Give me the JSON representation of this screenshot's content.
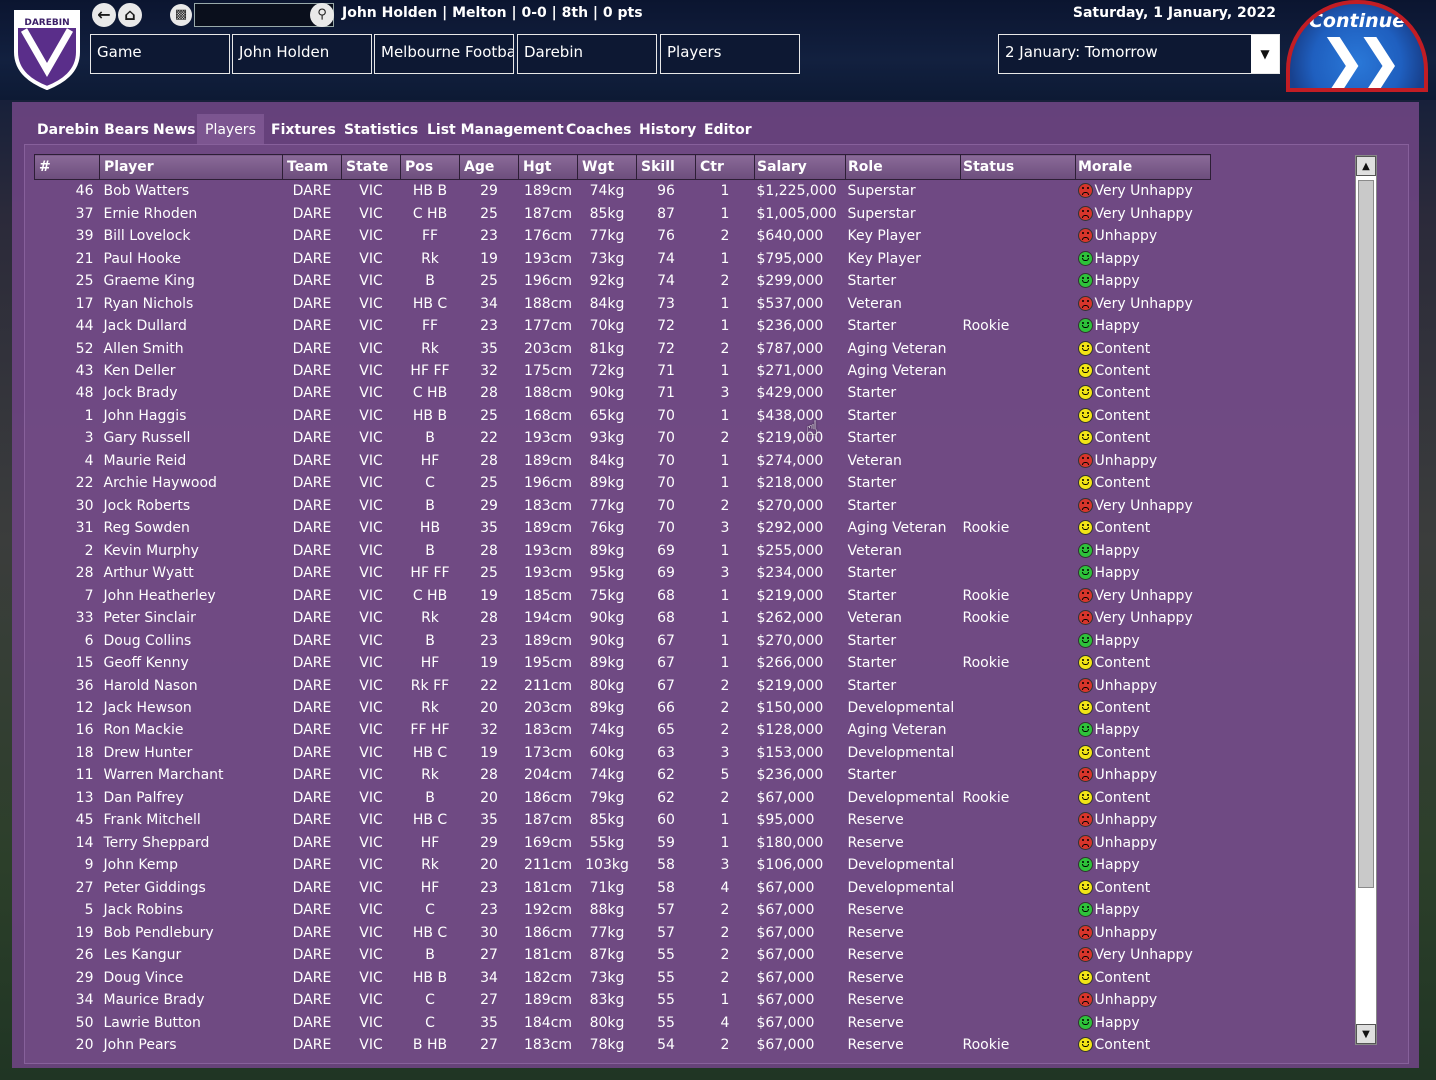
{
  "header": {
    "club_logo_text": "DAREBIN",
    "summary": "John Holden | Melton | 0-0 | 8th | 0 pts",
    "date": "Saturday, 1 January, 2022",
    "search_placeholder": "",
    "breadcrumbs": [
      "Game",
      "John Holden",
      "Melbourne Football",
      "Darebin",
      "Players"
    ],
    "next_day": "2 January: Tomorrow",
    "continue_label": "Continue"
  },
  "tabs": [
    "Darebin Bears",
    "News",
    "Players",
    "Fixtures",
    "Statistics",
    "List Management",
    "Coaches",
    "History",
    "Editor"
  ],
  "active_tab": "Players",
  "columns": [
    "#",
    "Player",
    "Team",
    "State",
    "Pos",
    "Age",
    "Hgt",
    "Wgt",
    "Skill",
    "Ctr",
    "Salary",
    "Role",
    "Status",
    "Morale"
  ],
  "players": [
    {
      "num": "46",
      "name": "Bob Watters",
      "team": "DARE",
      "state": "VIC",
      "pos": "HB B",
      "age": "29",
      "hgt": "189cm",
      "wgt": "74kg",
      "skill": "96",
      "ctr": "1",
      "salary": "$1,225,000",
      "role": "Superstar",
      "status": "",
      "morale": "Very Unhappy",
      "mood": "vunhappy"
    },
    {
      "num": "37",
      "name": "Ernie Rhoden",
      "team": "DARE",
      "state": "VIC",
      "pos": "C HB",
      "age": "25",
      "hgt": "187cm",
      "wgt": "85kg",
      "skill": "87",
      "ctr": "1",
      "salary": "$1,005,000",
      "role": "Superstar",
      "status": "",
      "morale": "Very Unhappy",
      "mood": "vunhappy"
    },
    {
      "num": "39",
      "name": "Bill Lovelock",
      "team": "DARE",
      "state": "VIC",
      "pos": "FF",
      "age": "23",
      "hgt": "176cm",
      "wgt": "77kg",
      "skill": "76",
      "ctr": "2",
      "salary": "$640,000",
      "role": "Key Player",
      "status": "",
      "morale": "Unhappy",
      "mood": "unhappy"
    },
    {
      "num": "21",
      "name": "Paul Hooke",
      "team": "DARE",
      "state": "VIC",
      "pos": "Rk",
      "age": "19",
      "hgt": "193cm",
      "wgt": "73kg",
      "skill": "74",
      "ctr": "1",
      "salary": "$795,000",
      "role": "Key Player",
      "status": "",
      "morale": "Happy",
      "mood": "happy"
    },
    {
      "num": "25",
      "name": "Graeme King",
      "team": "DARE",
      "state": "VIC",
      "pos": "B",
      "age": "25",
      "hgt": "196cm",
      "wgt": "92kg",
      "skill": "74",
      "ctr": "2",
      "salary": "$299,000",
      "role": "Starter",
      "status": "",
      "morale": "Happy",
      "mood": "happy"
    },
    {
      "num": "17",
      "name": "Ryan Nichols",
      "team": "DARE",
      "state": "VIC",
      "pos": "HB C",
      "age": "34",
      "hgt": "188cm",
      "wgt": "84kg",
      "skill": "73",
      "ctr": "1",
      "salary": "$537,000",
      "role": "Veteran",
      "status": "",
      "morale": "Very Unhappy",
      "mood": "vunhappy"
    },
    {
      "num": "44",
      "name": "Jack Dullard",
      "team": "DARE",
      "state": "VIC",
      "pos": "FF",
      "age": "23",
      "hgt": "177cm",
      "wgt": "70kg",
      "skill": "72",
      "ctr": "1",
      "salary": "$236,000",
      "role": "Starter",
      "status": "Rookie",
      "morale": "Happy",
      "mood": "happy"
    },
    {
      "num": "52",
      "name": "Allen Smith",
      "team": "DARE",
      "state": "VIC",
      "pos": "Rk",
      "age": "35",
      "hgt": "203cm",
      "wgt": "81kg",
      "skill": "72",
      "ctr": "2",
      "salary": "$787,000",
      "role": "Aging Veteran",
      "status": "",
      "morale": "Content",
      "mood": "content"
    },
    {
      "num": "43",
      "name": "Ken Deller",
      "team": "DARE",
      "state": "VIC",
      "pos": "HF FF",
      "age": "32",
      "hgt": "175cm",
      "wgt": "72kg",
      "skill": "71",
      "ctr": "1",
      "salary": "$271,000",
      "role": "Aging Veteran",
      "status": "",
      "morale": "Content",
      "mood": "content"
    },
    {
      "num": "48",
      "name": "Jock Brady",
      "team": "DARE",
      "state": "VIC",
      "pos": "C HB",
      "age": "28",
      "hgt": "188cm",
      "wgt": "90kg",
      "skill": "71",
      "ctr": "3",
      "salary": "$429,000",
      "role": "Starter",
      "status": "",
      "morale": "Content",
      "mood": "content"
    },
    {
      "num": "1",
      "name": "John Haggis",
      "team": "DARE",
      "state": "VIC",
      "pos": "HB B",
      "age": "25",
      "hgt": "168cm",
      "wgt": "65kg",
      "skill": "70",
      "ctr": "1",
      "salary": "$438,000",
      "role": "Starter",
      "status": "",
      "morale": "Content",
      "mood": "content"
    },
    {
      "num": "3",
      "name": "Gary Russell",
      "team": "DARE",
      "state": "VIC",
      "pos": "B",
      "age": "22",
      "hgt": "193cm",
      "wgt": "93kg",
      "skill": "70",
      "ctr": "2",
      "salary": "$219,000",
      "role": "Starter",
      "status": "",
      "morale": "Content",
      "mood": "content"
    },
    {
      "num": "4",
      "name": "Maurie Reid",
      "team": "DARE",
      "state": "VIC",
      "pos": "HF",
      "age": "28",
      "hgt": "189cm",
      "wgt": "84kg",
      "skill": "70",
      "ctr": "1",
      "salary": "$274,000",
      "role": "Veteran",
      "status": "",
      "morale": "Unhappy",
      "mood": "unhappy"
    },
    {
      "num": "22",
      "name": "Archie Haywood",
      "team": "DARE",
      "state": "VIC",
      "pos": "C",
      "age": "25",
      "hgt": "196cm",
      "wgt": "89kg",
      "skill": "70",
      "ctr": "1",
      "salary": "$218,000",
      "role": "Starter",
      "status": "",
      "morale": "Content",
      "mood": "content"
    },
    {
      "num": "30",
      "name": "Jock Roberts",
      "team": "DARE",
      "state": "VIC",
      "pos": "B",
      "age": "29",
      "hgt": "183cm",
      "wgt": "77kg",
      "skill": "70",
      "ctr": "2",
      "salary": "$270,000",
      "role": "Starter",
      "status": "",
      "morale": "Very Unhappy",
      "mood": "vunhappy"
    },
    {
      "num": "31",
      "name": "Reg Sowden",
      "team": "DARE",
      "state": "VIC",
      "pos": "HB",
      "age": "35",
      "hgt": "189cm",
      "wgt": "76kg",
      "skill": "70",
      "ctr": "3",
      "salary": "$292,000",
      "role": "Aging Veteran",
      "status": "Rookie",
      "morale": "Content",
      "mood": "content"
    },
    {
      "num": "2",
      "name": "Kevin Murphy",
      "team": "DARE",
      "state": "VIC",
      "pos": "B",
      "age": "28",
      "hgt": "193cm",
      "wgt": "89kg",
      "skill": "69",
      "ctr": "1",
      "salary": "$255,000",
      "role": "Veteran",
      "status": "",
      "morale": "Happy",
      "mood": "happy"
    },
    {
      "num": "28",
      "name": "Arthur Wyatt",
      "team": "DARE",
      "state": "VIC",
      "pos": "HF FF",
      "age": "25",
      "hgt": "193cm",
      "wgt": "95kg",
      "skill": "69",
      "ctr": "3",
      "salary": "$234,000",
      "role": "Starter",
      "status": "",
      "morale": "Happy",
      "mood": "happy"
    },
    {
      "num": "7",
      "name": "John Heatherley",
      "team": "DARE",
      "state": "VIC",
      "pos": "C HB",
      "age": "19",
      "hgt": "185cm",
      "wgt": "75kg",
      "skill": "68",
      "ctr": "1",
      "salary": "$219,000",
      "role": "Starter",
      "status": "Rookie",
      "morale": "Very Unhappy",
      "mood": "vunhappy"
    },
    {
      "num": "33",
      "name": "Peter Sinclair",
      "team": "DARE",
      "state": "VIC",
      "pos": "Rk",
      "age": "28",
      "hgt": "194cm",
      "wgt": "90kg",
      "skill": "68",
      "ctr": "1",
      "salary": "$262,000",
      "role": "Veteran",
      "status": "Rookie",
      "morale": "Very Unhappy",
      "mood": "vunhappy"
    },
    {
      "num": "6",
      "name": "Doug Collins",
      "team": "DARE",
      "state": "VIC",
      "pos": "B",
      "age": "23",
      "hgt": "189cm",
      "wgt": "90kg",
      "skill": "67",
      "ctr": "1",
      "salary": "$270,000",
      "role": "Starter",
      "status": "",
      "morale": "Happy",
      "mood": "happy"
    },
    {
      "num": "15",
      "name": "Geoff Kenny",
      "team": "DARE",
      "state": "VIC",
      "pos": "HF",
      "age": "19",
      "hgt": "195cm",
      "wgt": "89kg",
      "skill": "67",
      "ctr": "1",
      "salary": "$266,000",
      "role": "Starter",
      "status": "Rookie",
      "morale": "Content",
      "mood": "content"
    },
    {
      "num": "36",
      "name": "Harold Nason",
      "team": "DARE",
      "state": "VIC",
      "pos": "Rk FF",
      "age": "22",
      "hgt": "211cm",
      "wgt": "80kg",
      "skill": "67",
      "ctr": "2",
      "salary": "$219,000",
      "role": "Starter",
      "status": "",
      "morale": "Unhappy",
      "mood": "unhappy"
    },
    {
      "num": "12",
      "name": "Jack Hewson",
      "team": "DARE",
      "state": "VIC",
      "pos": "Rk",
      "age": "20",
      "hgt": "203cm",
      "wgt": "89kg",
      "skill": "66",
      "ctr": "2",
      "salary": "$150,000",
      "role": "Developmental",
      "status": "",
      "morale": "Content",
      "mood": "content"
    },
    {
      "num": "16",
      "name": "Ron Mackie",
      "team": "DARE",
      "state": "VIC",
      "pos": "FF HF",
      "age": "32",
      "hgt": "183cm",
      "wgt": "74kg",
      "skill": "65",
      "ctr": "2",
      "salary": "$128,000",
      "role": "Aging Veteran",
      "status": "",
      "morale": "Happy",
      "mood": "happy"
    },
    {
      "num": "18",
      "name": "Drew Hunter",
      "team": "DARE",
      "state": "VIC",
      "pos": "HB C",
      "age": "19",
      "hgt": "173cm",
      "wgt": "60kg",
      "skill": "63",
      "ctr": "3",
      "salary": "$153,000",
      "role": "Developmental",
      "status": "",
      "morale": "Content",
      "mood": "content"
    },
    {
      "num": "11",
      "name": "Warren Marchant",
      "team": "DARE",
      "state": "VIC",
      "pos": "Rk",
      "age": "28",
      "hgt": "204cm",
      "wgt": "74kg",
      "skill": "62",
      "ctr": "5",
      "salary": "$236,000",
      "role": "Starter",
      "status": "",
      "morale": "Unhappy",
      "mood": "unhappy"
    },
    {
      "num": "13",
      "name": "Dan Palfrey",
      "team": "DARE",
      "state": "VIC",
      "pos": "B",
      "age": "20",
      "hgt": "186cm",
      "wgt": "79kg",
      "skill": "62",
      "ctr": "2",
      "salary": "$67,000",
      "role": "Developmental",
      "status": "Rookie",
      "morale": "Content",
      "mood": "content"
    },
    {
      "num": "45",
      "name": "Frank Mitchell",
      "team": "DARE",
      "state": "VIC",
      "pos": "HB C",
      "age": "35",
      "hgt": "187cm",
      "wgt": "85kg",
      "skill": "60",
      "ctr": "1",
      "salary": "$95,000",
      "role": "Reserve",
      "status": "",
      "morale": "Unhappy",
      "mood": "unhappy"
    },
    {
      "num": "14",
      "name": "Terry Sheppard",
      "team": "DARE",
      "state": "VIC",
      "pos": "HF",
      "age": "29",
      "hgt": "169cm",
      "wgt": "55kg",
      "skill": "59",
      "ctr": "1",
      "salary": "$180,000",
      "role": "Reserve",
      "status": "",
      "morale": "Unhappy",
      "mood": "unhappy"
    },
    {
      "num": "9",
      "name": "John Kemp",
      "team": "DARE",
      "state": "VIC",
      "pos": "Rk",
      "age": "20",
      "hgt": "211cm",
      "wgt": "103kg",
      "skill": "58",
      "ctr": "3",
      "salary": "$106,000",
      "role": "Developmental",
      "status": "",
      "morale": "Happy",
      "mood": "happy"
    },
    {
      "num": "27",
      "name": "Peter Giddings",
      "team": "DARE",
      "state": "VIC",
      "pos": "HF",
      "age": "23",
      "hgt": "181cm",
      "wgt": "71kg",
      "skill": "58",
      "ctr": "4",
      "salary": "$67,000",
      "role": "Developmental",
      "status": "",
      "morale": "Content",
      "mood": "content"
    },
    {
      "num": "5",
      "name": "Jack Robins",
      "team": "DARE",
      "state": "VIC",
      "pos": "C",
      "age": "23",
      "hgt": "192cm",
      "wgt": "88kg",
      "skill": "57",
      "ctr": "2",
      "salary": "$67,000",
      "role": "Reserve",
      "status": "",
      "morale": "Happy",
      "mood": "happy"
    },
    {
      "num": "19",
      "name": "Bob Pendlebury",
      "team": "DARE",
      "state": "VIC",
      "pos": "HB C",
      "age": "30",
      "hgt": "186cm",
      "wgt": "77kg",
      "skill": "57",
      "ctr": "2",
      "salary": "$67,000",
      "role": "Reserve",
      "status": "",
      "morale": "Unhappy",
      "mood": "unhappy"
    },
    {
      "num": "26",
      "name": "Les Kangur",
      "team": "DARE",
      "state": "VIC",
      "pos": "B",
      "age": "27",
      "hgt": "181cm",
      "wgt": "87kg",
      "skill": "55",
      "ctr": "2",
      "salary": "$67,000",
      "role": "Reserve",
      "status": "",
      "morale": "Very Unhappy",
      "mood": "vunhappy"
    },
    {
      "num": "29",
      "name": "Doug Vince",
      "team": "DARE",
      "state": "VIC",
      "pos": "HB B",
      "age": "34",
      "hgt": "182cm",
      "wgt": "73kg",
      "skill": "55",
      "ctr": "2",
      "salary": "$67,000",
      "role": "Reserve",
      "status": "",
      "morale": "Content",
      "mood": "content"
    },
    {
      "num": "34",
      "name": "Maurice Brady",
      "team": "DARE",
      "state": "VIC",
      "pos": "C",
      "age": "27",
      "hgt": "189cm",
      "wgt": "83kg",
      "skill": "55",
      "ctr": "1",
      "salary": "$67,000",
      "role": "Reserve",
      "status": "",
      "morale": "Unhappy",
      "mood": "unhappy"
    },
    {
      "num": "50",
      "name": "Lawrie Button",
      "team": "DARE",
      "state": "VIC",
      "pos": "C",
      "age": "35",
      "hgt": "184cm",
      "wgt": "80kg",
      "skill": "55",
      "ctr": "4",
      "salary": "$67,000",
      "role": "Reserve",
      "status": "",
      "morale": "Happy",
      "mood": "happy"
    },
    {
      "num": "20",
      "name": "John Pears",
      "team": "DARE",
      "state": "VIC",
      "pos": "B HB",
      "age": "27",
      "hgt": "183cm",
      "wgt": "78kg",
      "skill": "54",
      "ctr": "2",
      "salary": "$67,000",
      "role": "Reserve",
      "status": "Rookie",
      "morale": "Content",
      "mood": "content"
    }
  ],
  "colors": {
    "panel": "#6c4480",
    "happy": "#2ec23a",
    "content": "#f2e416",
    "unhappy": "#d8352b",
    "continue_blue": "#1f5fbf",
    "continue_ring": "#c21d24"
  },
  "icons": {
    "back": "back-arrow-icon",
    "home": "home-icon",
    "save": "save-icon",
    "search": "search-icon",
    "dropdown": "chevron-down-icon",
    "continue": "double-chevron-right-icon",
    "morale": "smiley-face-icon"
  }
}
